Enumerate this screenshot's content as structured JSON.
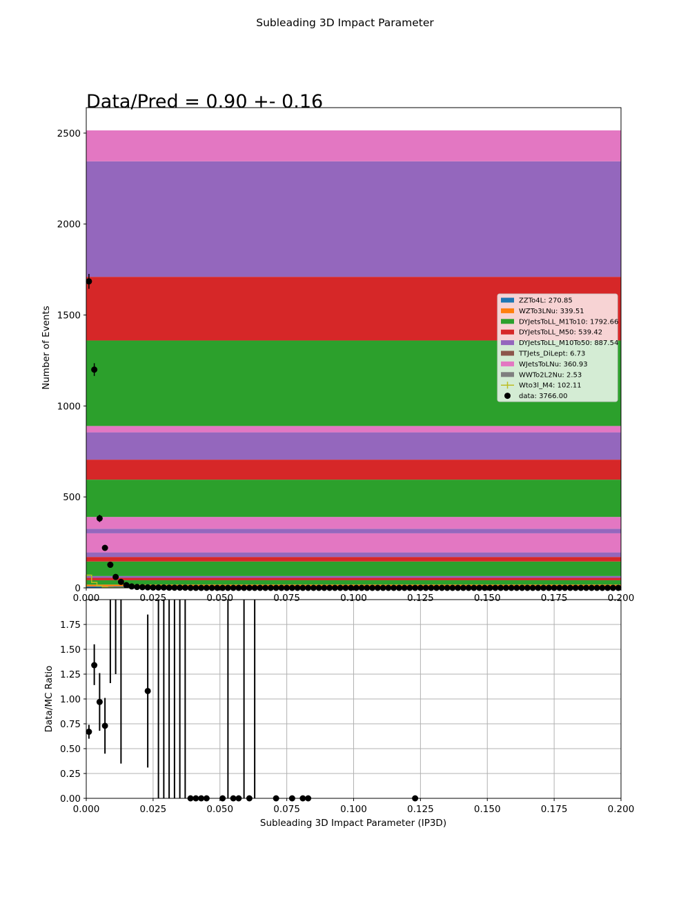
{
  "figure": {
    "suptitle": "Subleading 3D Impact Parameter",
    "annotation": "Data/Pred = 0.90 +- 0.16"
  },
  "chart_data": [
    {
      "type": "bar",
      "panel": "main",
      "ylabel": "Number of Events",
      "xlim": [
        0.0,
        0.2
      ],
      "ylim": [
        0,
        2640
      ],
      "xticks": [
        "0.000",
        "0.025",
        "0.050",
        "0.075",
        "0.100",
        "0.125",
        "0.150",
        "0.175",
        "0.200"
      ],
      "yticks": [
        "0",
        "500",
        "1000",
        "1500",
        "2000",
        "2500"
      ],
      "legend_position": "center-right",
      "legend": [
        {
          "label": "ZZTo4L: 270.85",
          "color": "#1f77b4",
          "kind": "patch"
        },
        {
          "label": "WZTo3LNu: 339.51",
          "color": "#ff7f0e",
          "kind": "patch"
        },
        {
          "label": "DYJetsToLL_M1To10: 1792.66",
          "color": "#2ca02c",
          "kind": "patch"
        },
        {
          "label": "DYJetsToLL_M50: 539.42",
          "color": "#d62728",
          "kind": "patch"
        },
        {
          "label": "DYJetsToLL_M10To50: 887.54",
          "color": "#9467bd",
          "kind": "patch"
        },
        {
          "label": "TTJets_DiLept: 6.73",
          "color": "#8c564b",
          "kind": "patch"
        },
        {
          "label": "WJetsToLNu: 360.93",
          "color": "#e377c2",
          "kind": "patch"
        },
        {
          "label": "WWTo2L2Nu: 2.53",
          "color": "#7f7f7f",
          "kind": "patch"
        },
        {
          "label": "Wto3l_M4: 102.11",
          "color": "#bcbd22",
          "kind": "line"
        },
        {
          "label": "data: 3766.00",
          "color": "#000000",
          "kind": "point"
        }
      ],
      "stack_bands": [
        {
          "y0": 0,
          "y1": 8,
          "color": "#1f77b4"
        },
        {
          "y0": 8,
          "y1": 18,
          "color": "#ff7f0e"
        },
        {
          "y0": 18,
          "y1": 42,
          "color": "#2ca02c"
        },
        {
          "y0": 42,
          "y1": 55,
          "color": "#d62728"
        },
        {
          "y0": 55,
          "y1": 65,
          "color": "#9467bd"
        },
        {
          "y0": 65,
          "y1": 145,
          "color": "#2ca02c"
        },
        {
          "y0": 145,
          "y1": 170,
          "color": "#d62728"
        },
        {
          "y0": 170,
          "y1": 195,
          "color": "#9467bd"
        },
        {
          "y0": 195,
          "y1": 300,
          "color": "#e377c2"
        },
        {
          "y0": 300,
          "y1": 325,
          "color": "#9467bd"
        },
        {
          "y0": 325,
          "y1": 390,
          "color": "#e377c2"
        },
        {
          "y0": 390,
          "y1": 595,
          "color": "#2ca02c"
        },
        {
          "y0": 595,
          "y1": 705,
          "color": "#d62728"
        },
        {
          "y0": 705,
          "y1": 855,
          "color": "#9467bd"
        },
        {
          "y0": 855,
          "y1": 890,
          "color": "#e377c2"
        },
        {
          "y0": 890,
          "y1": 1360,
          "color": "#2ca02c"
        },
        {
          "y0": 1360,
          "y1": 1710,
          "color": "#d62728"
        },
        {
          "y0": 1710,
          "y1": 2345,
          "color": "#9467bd"
        },
        {
          "y0": 2345,
          "y1": 2515,
          "color": "#e377c2"
        }
      ],
      "signal_step": {
        "x": [
          0.0,
          0.002,
          0.004,
          0.006,
          0.008,
          0.01,
          0.02,
          0.2
        ],
        "y": [
          70,
          30,
          10,
          4,
          2,
          1,
          0,
          0
        ]
      },
      "data": {
        "x": [
          0.001,
          0.003,
          0.005,
          0.007,
          0.009,
          0.011,
          0.013,
          0.015,
          0.017,
          0.019,
          0.021,
          0.023,
          0.025,
          0.027,
          0.029,
          0.031,
          0.033,
          0.035,
          0.037
        ],
        "y": [
          1685,
          1200,
          382,
          220,
          127,
          60,
          33,
          15,
          8,
          5,
          4,
          3,
          2,
          2,
          2,
          1,
          1,
          1,
          1
        ],
        "yerr": [
          41,
          35,
          20,
          15,
          11,
          8,
          6,
          4,
          3,
          2,
          2,
          2,
          1,
          1,
          1,
          1,
          1,
          1,
          1
        ]
      },
      "data_zero_step": 0.002,
      "data_zero_from": 0.039
    },
    {
      "type": "scatter",
      "panel": "ratio",
      "xlabel": "Subleading 3D Impact Parameter (IP3D)",
      "ylabel": "Data/MC Ratio",
      "xlim": [
        0.0,
        0.2
      ],
      "ylim": [
        0.0,
        2.0
      ],
      "grid": true,
      "xticks": [
        "0.000",
        "0.025",
        "0.050",
        "0.075",
        "0.100",
        "0.125",
        "0.150",
        "0.175",
        "0.200"
      ],
      "yticks": [
        "0.00",
        "0.25",
        "0.50",
        "0.75",
        "1.00",
        "1.25",
        "1.50",
        "1.75"
      ],
      "points": [
        {
          "x": 0.001,
          "y": 0.67,
          "lo": 0.6,
          "hi": 0.74
        },
        {
          "x": 0.003,
          "y": 1.34,
          "lo": 1.14,
          "hi": 1.55
        },
        {
          "x": 0.005,
          "y": 0.97,
          "lo": 0.68,
          "hi": 1.26
        },
        {
          "x": 0.007,
          "y": 0.73,
          "lo": 0.45,
          "hi": 1.01
        },
        {
          "x": 0.023,
          "y": 1.08,
          "lo": 0.31,
          "hi": 1.85
        }
      ],
      "offscale_bars": [
        {
          "x": 0.009,
          "lo": 1.16
        },
        {
          "x": 0.011,
          "lo": 1.25
        },
        {
          "x": 0.013,
          "lo": 0.35
        },
        {
          "x": 0.027,
          "lo": 0.0
        },
        {
          "x": 0.029,
          "lo": 0.0
        },
        {
          "x": 0.031,
          "lo": 0.0
        },
        {
          "x": 0.033,
          "lo": 0.0
        },
        {
          "x": 0.035,
          "lo": 0.0
        },
        {
          "x": 0.037,
          "lo": 0.0
        },
        {
          "x": 0.053,
          "lo": 0.0
        },
        {
          "x": 0.059,
          "lo": 0.0
        },
        {
          "x": 0.063,
          "lo": 0.0
        }
      ],
      "zeros": [
        0.039,
        0.041,
        0.043,
        0.045,
        0.051,
        0.055,
        0.057,
        0.061,
        0.071,
        0.077,
        0.081,
        0.083,
        0.123
      ]
    }
  ]
}
